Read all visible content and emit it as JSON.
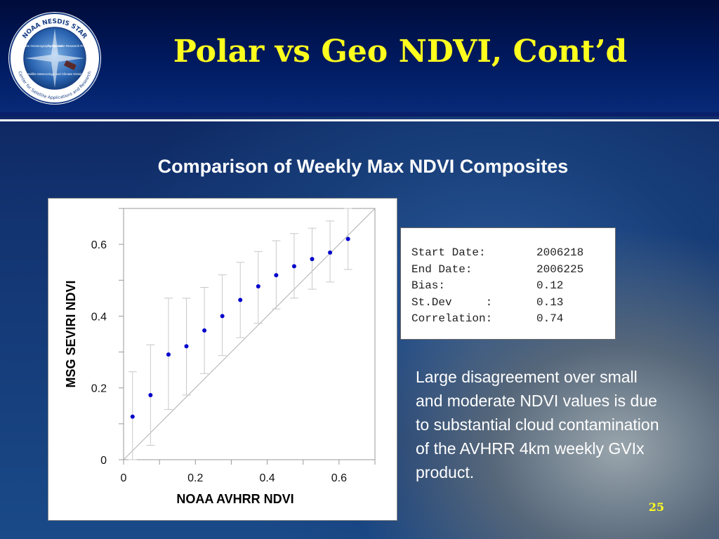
{
  "logo": {
    "ring_text": "NOAA NESDIS STAR",
    "ring_bottom_text": "Center for Satellite Applications and Research",
    "quadrants": [
      "Satellite Oceanography Division",
      "Cooperative Research Program",
      "Satellite Meteorology and Climate Division"
    ]
  },
  "slide": {
    "title": "Polar vs Geo NDVI, Cont’d",
    "subtitle": "Comparison of Weekly Max NDVI Composites",
    "page_number": "25",
    "note": "Large disagreement over small and moderate NDVI values is due to substantial cloud contamination of the AVHRR 4km weekly GVIx product."
  },
  "stats": [
    {
      "label": "Start Date:",
      "value": "2006218"
    },
    {
      "label": "End Date:",
      "value": "2006225"
    },
    {
      "label": "Bias:",
      "value": "0.12"
    },
    {
      "label": "St.Dev     :",
      "value": "0.13"
    },
    {
      "label": "Correlation:",
      "value": "0.74"
    }
  ],
  "chart_data": {
    "type": "scatter",
    "xlabel": "NOAA AVHRR NDVI",
    "ylabel": "MSG SEVIRI NDVI",
    "xlim": [
      0,
      0.7
    ],
    "ylim": [
      0,
      0.7
    ],
    "xticks": [
      0,
      0.2,
      0.4,
      0.6
    ],
    "xtick_labels": [
      "0",
      "0.2",
      "0.4",
      "0.6"
    ],
    "yticks": [
      0,
      0.2,
      0.4,
      0.6
    ],
    "ytick_labels": [
      "0",
      "0.2",
      "0.4",
      "0.6"
    ],
    "reference_line": "1:1 diagonal",
    "grid": false,
    "x": [
      0.025,
      0.075,
      0.125,
      0.175,
      0.225,
      0.275,
      0.325,
      0.375,
      0.425,
      0.475,
      0.525,
      0.575,
      0.625
    ],
    "y": [
      0.12,
      0.18,
      0.293,
      0.316,
      0.36,
      0.4,
      0.445,
      0.483,
      0.514,
      0.539,
      0.559,
      0.577,
      0.615
    ],
    "error_low": [
      0.0,
      0.04,
      0.14,
      0.18,
      0.24,
      0.29,
      0.34,
      0.38,
      0.42,
      0.45,
      0.475,
      0.495,
      0.53
    ],
    "error_high": [
      0.245,
      0.32,
      0.45,
      0.45,
      0.48,
      0.515,
      0.55,
      0.58,
      0.61,
      0.63,
      0.645,
      0.665,
      0.7
    ],
    "point_color": "#0000cc",
    "errorbar_color": "#c8c8c8"
  }
}
